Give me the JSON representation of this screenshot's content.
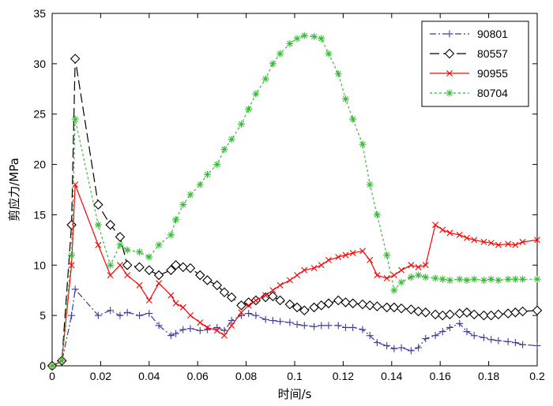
{
  "chart_data": {
    "type": "line",
    "title": "",
    "xlabel": "时间/s",
    "ylabel": "剪应力/MPa",
    "xlim": [
      0,
      0.2
    ],
    "ylim": [
      0,
      35
    ],
    "xticks": [
      0,
      0.02,
      0.04,
      0.06,
      0.08,
      0.1,
      0.12,
      0.14,
      0.16,
      0.18,
      0.2
    ],
    "xtick_labels": [
      "0",
      "0.02",
      "0.04",
      "0.06",
      "0.08",
      "0.1",
      "0.12",
      "0.14",
      "0.16",
      "0.18",
      "0.2"
    ],
    "yticks": [
      0,
      5,
      10,
      15,
      20,
      25,
      30,
      35
    ],
    "ytick_labels": [
      "0",
      "5",
      "10",
      "15",
      "20",
      "25",
      "30",
      "35"
    ],
    "grid": false,
    "legend_position": "top-right",
    "series": [
      {
        "name": "90801",
        "color": "#3b3b9b",
        "line_style": "dash-dot",
        "marker": "plus",
        "x": [
          0,
          0.004,
          0.008,
          0.0095,
          0.019,
          0.024,
          0.028,
          0.031,
          0.036,
          0.04,
          0.044,
          0.049,
          0.051,
          0.054,
          0.057,
          0.061,
          0.064,
          0.068,
          0.071,
          0.074,
          0.078,
          0.081,
          0.084,
          0.088,
          0.091,
          0.094,
          0.098,
          0.101,
          0.104,
          0.108,
          0.111,
          0.114,
          0.118,
          0.121,
          0.124,
          0.128,
          0.131,
          0.134,
          0.138,
          0.141,
          0.144,
          0.148,
          0.151,
          0.154,
          0.158,
          0.161,
          0.164,
          0.168,
          0.171,
          0.174,
          0.178,
          0.181,
          0.184,
          0.188,
          0.191,
          0.194,
          0.2
        ],
        "y": [
          0,
          0.4,
          5.0,
          7.6,
          5.0,
          5.5,
          5.0,
          5.3,
          5.0,
          5.2,
          4.0,
          3.0,
          3.2,
          3.6,
          3.7,
          3.5,
          3.6,
          3.8,
          3.5,
          4.5,
          5.0,
          5.2,
          5.0,
          4.6,
          4.5,
          4.4,
          4.3,
          4.1,
          4.0,
          3.9,
          4.0,
          4.0,
          4.0,
          3.8,
          3.8,
          3.6,
          3.0,
          2.3,
          2.0,
          1.7,
          1.8,
          1.5,
          1.8,
          2.7,
          3.0,
          3.4,
          3.8,
          4.2,
          3.4,
          3.0,
          2.8,
          2.6,
          2.5,
          2.4,
          2.3,
          2.1,
          2.0
        ]
      },
      {
        "name": "80557",
        "color": "#000000",
        "line_style": "long-dash",
        "marker": "diamond",
        "x": [
          0,
          0.004,
          0.008,
          0.0095,
          0.019,
          0.024,
          0.028,
          0.031,
          0.036,
          0.04,
          0.044,
          0.049,
          0.051,
          0.054,
          0.057,
          0.061,
          0.064,
          0.068,
          0.071,
          0.074,
          0.078,
          0.081,
          0.084,
          0.088,
          0.091,
          0.094,
          0.098,
          0.101,
          0.104,
          0.108,
          0.111,
          0.114,
          0.118,
          0.121,
          0.124,
          0.128,
          0.131,
          0.134,
          0.138,
          0.141,
          0.144,
          0.148,
          0.151,
          0.154,
          0.158,
          0.161,
          0.164,
          0.168,
          0.171,
          0.174,
          0.178,
          0.181,
          0.184,
          0.188,
          0.191,
          0.194,
          0.2
        ],
        "y": [
          0,
          0.5,
          14.0,
          30.5,
          16.0,
          14.0,
          12.8,
          10.0,
          9.8,
          9.5,
          9.0,
          9.5,
          10.0,
          9.8,
          9.7,
          9.0,
          8.5,
          8.0,
          7.3,
          6.8,
          6.0,
          6.3,
          6.5,
          6.8,
          6.9,
          6.5,
          6.1,
          5.8,
          5.5,
          5.8,
          6.0,
          6.2,
          6.5,
          6.3,
          6.2,
          6.1,
          6.0,
          5.9,
          5.8,
          5.8,
          5.7,
          5.6,
          5.4,
          5.3,
          5.1,
          5.0,
          5.1,
          5.2,
          5.3,
          5.1,
          5.0,
          5.0,
          5.1,
          5.2,
          5.3,
          5.4,
          5.5
        ]
      },
      {
        "name": "90955",
        "color": "#ff0000",
        "line_style": "solid",
        "marker": "x",
        "x": [
          0,
          0.004,
          0.008,
          0.0095,
          0.019,
          0.024,
          0.028,
          0.031,
          0.036,
          0.04,
          0.044,
          0.049,
          0.051,
          0.054,
          0.057,
          0.061,
          0.064,
          0.068,
          0.071,
          0.074,
          0.078,
          0.081,
          0.084,
          0.088,
          0.091,
          0.094,
          0.098,
          0.101,
          0.104,
          0.108,
          0.111,
          0.114,
          0.118,
          0.121,
          0.124,
          0.128,
          0.131,
          0.134,
          0.138,
          0.141,
          0.144,
          0.148,
          0.151,
          0.154,
          0.158,
          0.161,
          0.164,
          0.168,
          0.171,
          0.174,
          0.178,
          0.181,
          0.184,
          0.188,
          0.191,
          0.194,
          0.2
        ],
        "y": [
          0,
          0.5,
          10.0,
          18.0,
          12.0,
          9.0,
          10.0,
          9.0,
          8.0,
          6.5,
          8.2,
          7.0,
          6.2,
          5.8,
          5.0,
          4.3,
          3.8,
          3.5,
          3.0,
          4.0,
          5.3,
          6.0,
          6.5,
          7.0,
          7.5,
          8.0,
          8.5,
          9.0,
          9.5,
          9.7,
          10.0,
          10.5,
          10.8,
          11.0,
          11.2,
          11.4,
          10.5,
          9.0,
          8.7,
          9.0,
          9.5,
          10.0,
          9.8,
          10.0,
          14.0,
          13.5,
          13.2,
          13.0,
          12.7,
          12.5,
          12.3,
          12.2,
          12.0,
          12.1,
          12.0,
          12.3,
          12.5
        ]
      },
      {
        "name": "80704",
        "color": "#33bb33",
        "line_style": "dotted",
        "marker": "star",
        "x": [
          0,
          0.004,
          0.008,
          0.0095,
          0.019,
          0.024,
          0.028,
          0.031,
          0.036,
          0.04,
          0.044,
          0.049,
          0.051,
          0.054,
          0.057,
          0.061,
          0.064,
          0.068,
          0.071,
          0.074,
          0.078,
          0.081,
          0.084,
          0.088,
          0.091,
          0.094,
          0.098,
          0.101,
          0.104,
          0.108,
          0.111,
          0.114,
          0.118,
          0.121,
          0.124,
          0.128,
          0.131,
          0.134,
          0.138,
          0.141,
          0.144,
          0.148,
          0.151,
          0.154,
          0.158,
          0.161,
          0.164,
          0.168,
          0.171,
          0.174,
          0.178,
          0.181,
          0.184,
          0.188,
          0.191,
          0.194,
          0.2
        ],
        "y": [
          0,
          0.5,
          11.0,
          24.5,
          14.0,
          10.0,
          12.0,
          11.5,
          11.3,
          10.8,
          12.0,
          13.0,
          14.5,
          16.0,
          17.0,
          18.0,
          19.0,
          20.0,
          21.5,
          22.5,
          24.0,
          25.5,
          27.0,
          28.5,
          30.0,
          31.0,
          32.0,
          32.5,
          32.8,
          32.7,
          32.5,
          31.0,
          29.0,
          26.5,
          24.5,
          22.0,
          18.0,
          15.0,
          11.0,
          7.5,
          8.3,
          8.8,
          9.0,
          8.8,
          8.7,
          8.6,
          8.5,
          8.6,
          8.5,
          8.6,
          8.5,
          8.6,
          8.5,
          8.6,
          8.6,
          8.6,
          8.6
        ]
      }
    ]
  }
}
